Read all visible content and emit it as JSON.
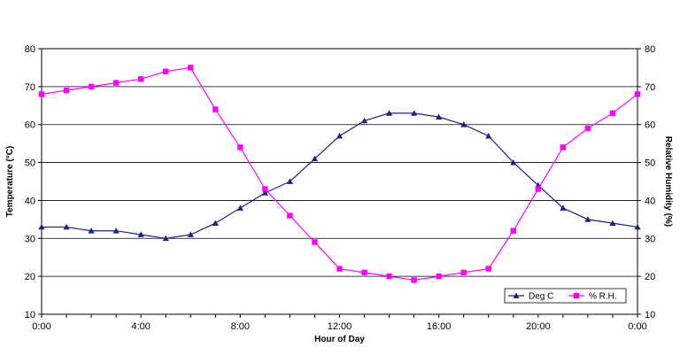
{
  "chart_data": {
    "type": "line",
    "xlabel": "Hour of Day",
    "ylabel_left": "Temperature (°C)",
    "ylabel_right": "Relative Humidity (%)",
    "ylim": [
      10,
      80
    ],
    "yticks": [
      10,
      20,
      30,
      40,
      50,
      60,
      70,
      80
    ],
    "xlim": [
      0,
      24
    ],
    "xticks": [
      {
        "value": 0,
        "label": "0:00"
      },
      {
        "value": 4,
        "label": "4:00"
      },
      {
        "value": 8,
        "label": "8:00"
      },
      {
        "value": 12,
        "label": "12:00"
      },
      {
        "value": 16,
        "label": "16:00"
      },
      {
        "value": 20,
        "label": "20:00"
      },
      {
        "value": 24,
        "label": "0:00"
      }
    ],
    "grid": "horizontal",
    "legend_position": "bottom-right",
    "x": [
      0,
      1,
      2,
      3,
      4,
      5,
      6,
      7,
      8,
      9,
      10,
      11,
      12,
      13,
      14,
      15,
      16,
      17,
      18,
      19,
      20,
      21,
      22,
      23,
      24
    ],
    "series": [
      {
        "name": "Deg C",
        "axis": "left",
        "color": "#1a237e",
        "marker": "triangle",
        "values": [
          33,
          33,
          32,
          32,
          31,
          30,
          31,
          34,
          38,
          42,
          45,
          51,
          57,
          61,
          63,
          63,
          62,
          60,
          57,
          50,
          44,
          38,
          35,
          34,
          33
        ]
      },
      {
        "name": "% R.H.",
        "axis": "right",
        "color": "#ff00ff",
        "marker": "square",
        "values": [
          68,
          69,
          70,
          71,
          72,
          74,
          75,
          64,
          54,
          43,
          36,
          29,
          22,
          21,
          20,
          19,
          20,
          21,
          22,
          32,
          43,
          54,
          59,
          63,
          68
        ]
      }
    ]
  }
}
